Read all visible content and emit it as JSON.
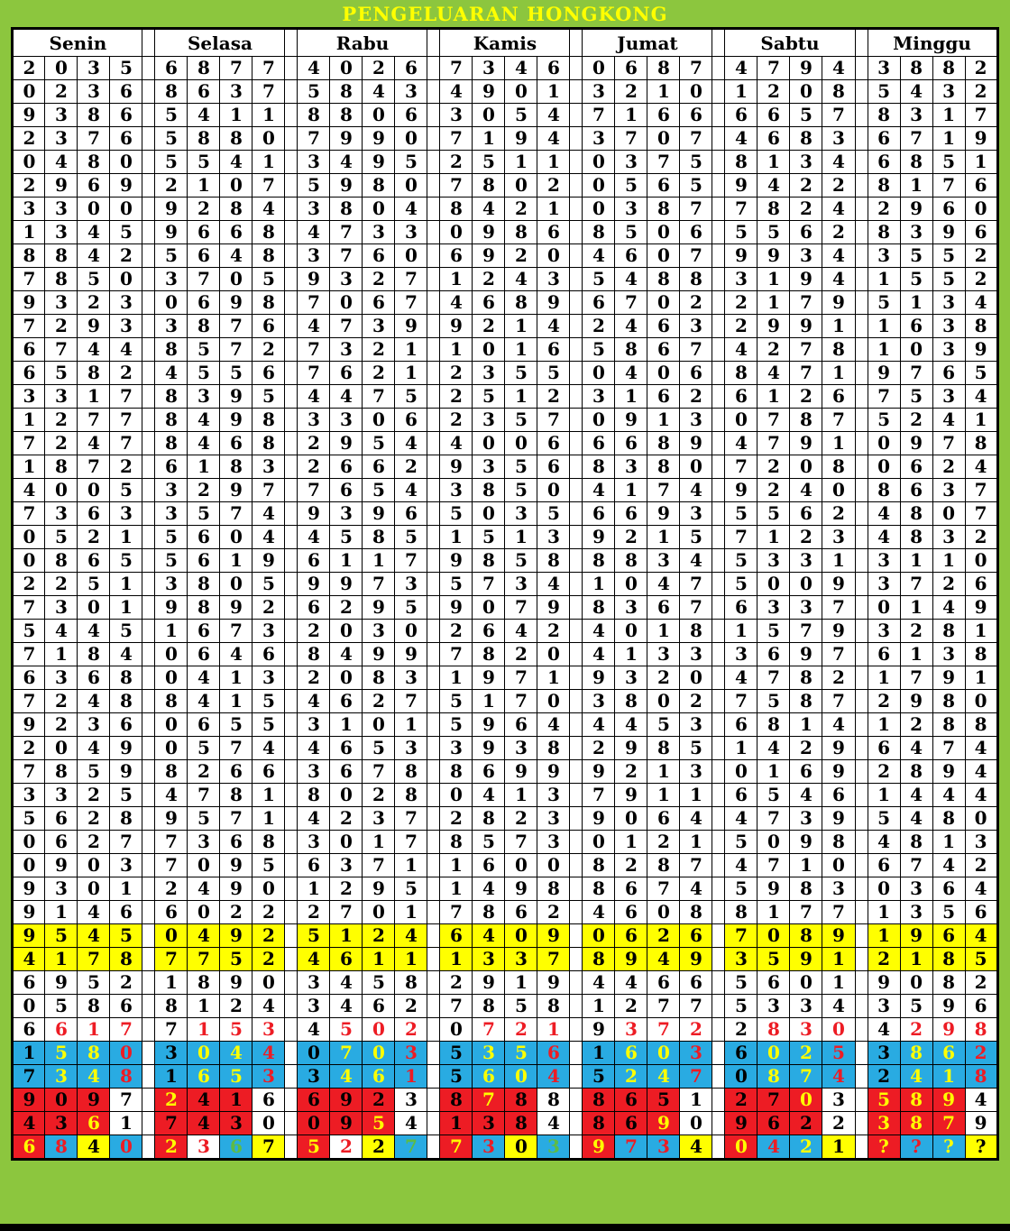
{
  "title": "PENGELUARAN HONGKONG",
  "days": [
    "Senin",
    "Selasa",
    "Rabu",
    "Kamis",
    "Jumat",
    "Sabtu",
    "Minggu"
  ],
  "colors": {
    "page_bg": "#8CC63E",
    "title_text": "#FFFF00",
    "map": {
      "k": "#000000",
      "w": "#FFFFFF",
      "r": "#ED1C24",
      "y": "#FFFF00",
      "b": "#29ABE2",
      "g": "#5DBB46"
    }
  },
  "rows": [
    {
      "nums": [
        "2035",
        "6877",
        "4026",
        "7346",
        "0687",
        "4794",
        "3882"
      ]
    },
    {
      "nums": [
        "0236",
        "8637",
        "5843",
        "4901",
        "3210",
        "1208",
        "5432"
      ]
    },
    {
      "nums": [
        "9386",
        "5411",
        "8806",
        "3054",
        "7166",
        "6657",
        "8317"
      ]
    },
    {
      "nums": [
        "2376",
        "5880",
        "7990",
        "7194",
        "3707",
        "4683",
        "6719"
      ]
    },
    {
      "nums": [
        "0480",
        "5541",
        "3495",
        "2511",
        "0375",
        "8134",
        "6851"
      ]
    },
    {
      "nums": [
        "2969",
        "2107",
        "5980",
        "7802",
        "0565",
        "9422",
        "8176"
      ]
    },
    {
      "nums": [
        "3300",
        "9284",
        "3804",
        "8421",
        "0387",
        "7824",
        "2960"
      ]
    },
    {
      "nums": [
        "1345",
        "9668",
        "4733",
        "0986",
        "8506",
        "5562",
        "8396"
      ]
    },
    {
      "nums": [
        "8842",
        "5648",
        "3760",
        "6920",
        "4607",
        "9934",
        "3552"
      ]
    },
    {
      "nums": [
        "7850",
        "3705",
        "9327",
        "1243",
        "5488",
        "3194",
        "1552"
      ]
    },
    {
      "nums": [
        "9323",
        "0698",
        "7067",
        "4689",
        "6702",
        "2179",
        "5134"
      ]
    },
    {
      "nums": [
        "7293",
        "3876",
        "4739",
        "9214",
        "2463",
        "2991",
        "1638"
      ]
    },
    {
      "nums": [
        "6744",
        "8572",
        "7321",
        "1016",
        "5867",
        "4278",
        "1039"
      ]
    },
    {
      "nums": [
        "6582",
        "4556",
        "7621",
        "2355",
        "0406",
        "8471",
        "9765"
      ]
    },
    {
      "nums": [
        "3317",
        "8395",
        "4475",
        "2512",
        "3162",
        "6126",
        "7534"
      ]
    },
    {
      "nums": [
        "1277",
        "8498",
        "3306",
        "2357",
        "0913",
        "0787",
        "5241"
      ]
    },
    {
      "nums": [
        "7247",
        "8468",
        "2954",
        "4006",
        "6689",
        "4791",
        "0978"
      ]
    },
    {
      "nums": [
        "1872",
        "6183",
        "2662",
        "9356",
        "8380",
        "7208",
        "0624"
      ]
    },
    {
      "nums": [
        "4005",
        "3297",
        "7654",
        "3850",
        "4174",
        "9240",
        "8637"
      ]
    },
    {
      "nums": [
        "7363",
        "3574",
        "9396",
        "5035",
        "6693",
        "5562",
        "4807"
      ]
    },
    {
      "nums": [
        "0521",
        "5604",
        "4585",
        "1513",
        "9215",
        "7123",
        "4832"
      ]
    },
    {
      "nums": [
        "0865",
        "5619",
        "6117",
        "9858",
        "8834",
        "5331",
        "3110"
      ]
    },
    {
      "nums": [
        "2251",
        "3805",
        "9973",
        "5734",
        "1047",
        "5009",
        "3726"
      ]
    },
    {
      "nums": [
        "7301",
        "9892",
        "6295",
        "9079",
        "8367",
        "6337",
        "0149"
      ]
    },
    {
      "nums": [
        "5445",
        "1673",
        "2030",
        "2642",
        "4018",
        "1579",
        "3281"
      ]
    },
    {
      "nums": [
        "7184",
        "0646",
        "8499",
        "7820",
        "4133",
        "3697",
        "6138"
      ]
    },
    {
      "nums": [
        "6368",
        "0413",
        "2083",
        "1971",
        "9320",
        "4782",
        "1791"
      ]
    },
    {
      "nums": [
        "7248",
        "8415",
        "4627",
        "5170",
        "3802",
        "7587",
        "2980"
      ]
    },
    {
      "nums": [
        "9236",
        "0655",
        "3101",
        "5964",
        "4453",
        "6814",
        "1288"
      ]
    },
    {
      "nums": [
        "2049",
        "0574",
        "4653",
        "3938",
        "2985",
        "1429",
        "6474"
      ]
    },
    {
      "nums": [
        "7859",
        "8266",
        "3678",
        "8699",
        "9213",
        "0169",
        "2894"
      ]
    },
    {
      "nums": [
        "3325",
        "4781",
        "8028",
        "0413",
        "7911",
        "6546",
        "1444"
      ]
    },
    {
      "nums": [
        "5628",
        "9571",
        "4237",
        "2823",
        "9064",
        "4739",
        "5480"
      ]
    },
    {
      "nums": [
        "0627",
        "7368",
        "3017",
        "8573",
        "0121",
        "5098",
        "4813"
      ]
    },
    {
      "nums": [
        "0903",
        "7095",
        "6371",
        "1600",
        "8287",
        "4710",
        "6742"
      ]
    },
    {
      "nums": [
        "9301",
        "2490",
        "1295",
        "1498",
        "8674",
        "5983",
        "0364"
      ]
    },
    {
      "nums": [
        "9146",
        "6022",
        "2701",
        "7862",
        "4608",
        "8177",
        "1356"
      ]
    },
    {
      "nums": [
        "9545",
        "0492",
        "5124",
        "6409",
        "0626",
        "7089",
        "1964"
      ],
      "bg": [
        "yyyy",
        "yyyy",
        "yyyy",
        "yyyy",
        "yyyy",
        "yyyy",
        "yyyy"
      ]
    },
    {
      "nums": [
        "4178",
        "7752",
        "4611",
        "1337",
        "8949",
        "3591",
        "2185"
      ],
      "bg": [
        "yyyy",
        "yyyy",
        "yyyy",
        "yyyy",
        "yyyy",
        "yyyy",
        "yyyy"
      ]
    },
    {
      "nums": [
        "6952",
        "1890",
        "3458",
        "2919",
        "4466",
        "5601",
        "9082"
      ]
    },
    {
      "nums": [
        "0586",
        "8124",
        "3462",
        "7858",
        "1277",
        "5334",
        "3596"
      ]
    },
    {
      "nums": [
        "6617",
        "7153",
        "4502",
        "0721",
        "9372",
        "2830",
        "4298"
      ],
      "fg": [
        "krrr",
        "krrr",
        "krrr",
        "krrr",
        "krrr",
        "krrr",
        "krrr"
      ]
    },
    {
      "nums": [
        "1580",
        "3044",
        "0703",
        "5356",
        "1603",
        "6025",
        "3862"
      ],
      "fg": [
        "kyyr",
        "kyyr",
        "kyyr",
        "kyyr",
        "kyyr",
        "kyyr",
        "kyyr"
      ],
      "bg": [
        "bbbb",
        "bbbb",
        "bbbb",
        "bbbb",
        "bbbb",
        "bbbb",
        "bbbb"
      ]
    },
    {
      "nums": [
        "7348",
        "1653",
        "3461",
        "5604",
        "5247",
        "0874",
        "2418"
      ],
      "fg": [
        "kyyr",
        "kyyr",
        "kyyr",
        "kyyr",
        "kyyr",
        "kyyr",
        "kyyr"
      ],
      "bg": [
        "bbbb",
        "bbbb",
        "bbbb",
        "bbbb",
        "bbbb",
        "bbbb",
        "bbbb"
      ]
    },
    {
      "nums": [
        "9097",
        "2416",
        "6923",
        "8788",
        "8651",
        "2703",
        "5894"
      ],
      "fg": [
        "kkkk",
        "ykkk",
        "kkkk",
        "kykk",
        "kkkk",
        "kkyk",
        "yyyk"
      ],
      "bg": [
        "rrrw",
        "rrrw",
        "rrrw",
        "rrrw",
        "rrrw",
        "rrrw",
        "rrrw"
      ]
    },
    {
      "nums": [
        "4361",
        "7430",
        "0954",
        "1384",
        "8690",
        "9622",
        "3879"
      ],
      "fg": [
        "kkyk",
        "kkkk",
        "kkyk",
        "kkkk",
        "kkyk",
        "kkkk",
        "yyyk"
      ],
      "bg": [
        "rrrw",
        "rrrw",
        "rrrw",
        "rrrw",
        "rrrw",
        "rrrw",
        "rrrw"
      ]
    },
    {
      "nums": [
        "6840",
        "2367",
        "5227",
        "7303",
        "9734",
        "0421",
        "????"
      ],
      "fg": [
        "yrkr",
        "yrgk",
        "yrkg",
        "yrkg",
        "yrrk",
        "yryk",
        "yryk"
      ],
      "bg": [
        "rbyb",
        "rwby",
        "rwyb",
        "rbyb",
        "rbby",
        "rbby",
        "rbby"
      ]
    }
  ]
}
